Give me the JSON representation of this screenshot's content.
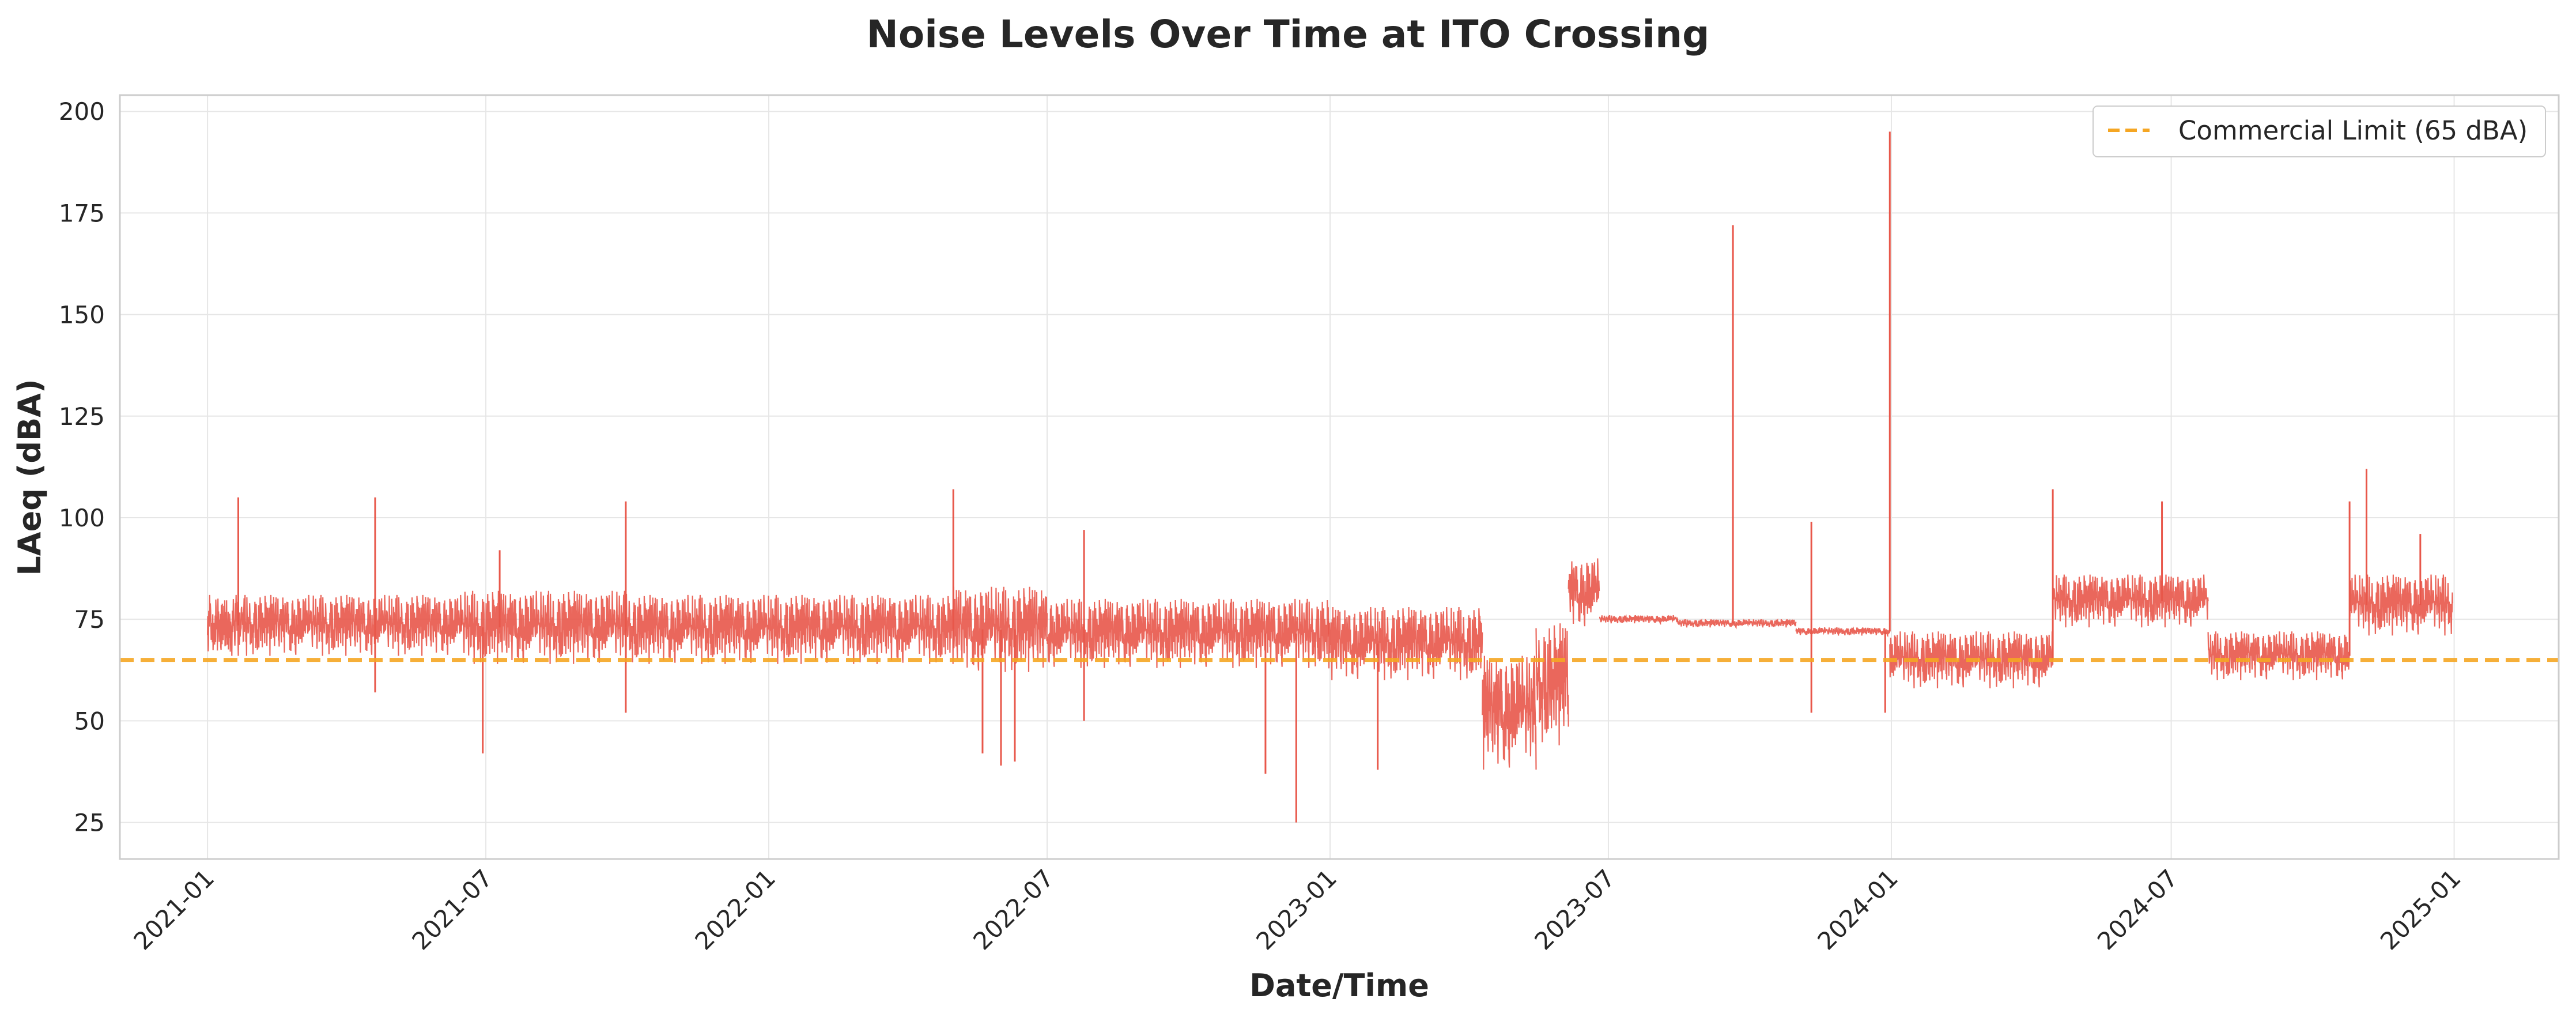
{
  "chart_data": {
    "type": "line",
    "title": "Noise Levels Over Time at ITO Crossing",
    "xlabel": "Date/Time",
    "ylabel": "LAeq (dBA)",
    "x_type": "date",
    "xlim": [
      "2020-11-05",
      "2025-03-10"
    ],
    "ylim": [
      16,
      204
    ],
    "x_ticks": [
      "2021-01",
      "2021-07",
      "2022-01",
      "2022-07",
      "2023-01",
      "2023-07",
      "2024-01",
      "2024-07",
      "2025-01"
    ],
    "x_tick_dates": [
      "2021-01-01",
      "2021-07-01",
      "2022-01-01",
      "2022-07-01",
      "2023-01-01",
      "2023-07-01",
      "2024-01-01",
      "2024-07-01",
      "2025-01-01"
    ],
    "y_ticks": [
      25,
      50,
      75,
      100,
      125,
      150,
      175,
      200
    ],
    "grid": true,
    "legend_position": "top-right",
    "series_color": "#e8574a",
    "reference_line": {
      "name": "Commercial Limit (65 dBA)",
      "value": 65,
      "color": "#f5a623",
      "style": "dashed"
    },
    "series": [
      {
        "name": "LAeq",
        "segments": [
          {
            "start": "2021-01-01",
            "end": "2021-06-15",
            "low": 66,
            "high": 81
          },
          {
            "start": "2021-06-15",
            "end": "2021-10-05",
            "low": 64,
            "high": 82
          },
          {
            "start": "2021-10-05",
            "end": "2022-05-01",
            "low": 64,
            "high": 81
          },
          {
            "start": "2022-05-01",
            "end": "2022-07-01",
            "low": 62,
            "high": 83
          },
          {
            "start": "2022-07-01",
            "end": "2022-12-31",
            "low": 63,
            "high": 80
          },
          {
            "start": "2022-12-31",
            "end": "2023-04-10",
            "low": 60,
            "high": 78
          },
          {
            "start": "2023-04-10",
            "end": "2023-05-15",
            "low": 38,
            "high": 66
          },
          {
            "start": "2023-05-15",
            "end": "2023-06-05",
            "low": 44,
            "high": 74
          },
          {
            "start": "2023-06-05",
            "end": "2023-06-25",
            "low": 73,
            "high": 90
          },
          {
            "start": "2023-06-25",
            "end": "2023-08-15",
            "low": 74,
            "high": 76
          },
          {
            "start": "2023-08-15",
            "end": "2023-10-31",
            "low": 73,
            "high": 75
          },
          {
            "start": "2023-10-31",
            "end": "2023-12-31",
            "low": 71,
            "high": 73
          },
          {
            "start": "2023-12-31",
            "end": "2024-04-15",
            "low": 58,
            "high": 72
          },
          {
            "start": "2024-04-15",
            "end": "2024-07-25",
            "low": 73,
            "high": 86
          },
          {
            "start": "2024-07-25",
            "end": "2024-10-25",
            "low": 60,
            "high": 72
          },
          {
            "start": "2024-10-25",
            "end": "2024-12-31",
            "low": 71,
            "high": 86
          }
        ],
        "spikes": [
          {
            "x": "2021-01-21",
            "y": 105
          },
          {
            "x": "2021-04-20",
            "y": 105
          },
          {
            "x": "2021-04-20",
            "y": 57
          },
          {
            "x": "2021-06-29",
            "y": 42
          },
          {
            "x": "2021-07-10",
            "y": 92
          },
          {
            "x": "2021-09-30",
            "y": 104
          },
          {
            "x": "2021-09-30",
            "y": 52
          },
          {
            "x": "2022-05-01",
            "y": 107
          },
          {
            "x": "2022-05-20",
            "y": 42
          },
          {
            "x": "2022-06-01",
            "y": 39
          },
          {
            "x": "2022-06-10",
            "y": 40
          },
          {
            "x": "2022-07-25",
            "y": 50
          },
          {
            "x": "2022-07-25",
            "y": 97
          },
          {
            "x": "2022-11-20",
            "y": 37
          },
          {
            "x": "2022-12-10",
            "y": 25
          },
          {
            "x": "2023-02-01",
            "y": 38
          },
          {
            "x": "2023-09-20",
            "y": 172
          },
          {
            "x": "2023-11-10",
            "y": 99
          },
          {
            "x": "2023-11-10",
            "y": 52
          },
          {
            "x": "2023-12-28",
            "y": 52
          },
          {
            "x": "2023-12-31",
            "y": 195
          },
          {
            "x": "2024-04-15",
            "y": 107
          },
          {
            "x": "2024-06-25",
            "y": 104
          },
          {
            "x": "2024-10-25",
            "y": 104
          },
          {
            "x": "2024-11-05",
            "y": 112
          },
          {
            "x": "2024-12-10",
            "y": 96
          }
        ]
      }
    ]
  }
}
